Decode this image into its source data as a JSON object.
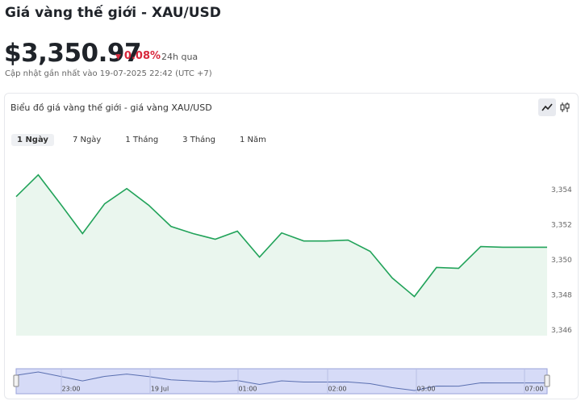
{
  "header": {
    "title": "Giá vàng thế giới - XAU/USD",
    "price": "$3,350.97",
    "change": "0.08%",
    "period": "24h qua",
    "updated": "Cập nhật gần nhất vào 19-07-2025 22:42 (UTC +7)"
  },
  "card": {
    "title": "Biểu đồ giá vàng thế giới - giá vàng XAU/USD",
    "tabs": [
      "1 Ngày",
      "7 Ngày",
      "1 Tháng",
      "3 Tháng",
      "1 Năm"
    ]
  },
  "chart_data": {
    "type": "line",
    "color": "#22a35a",
    "fill": "#eaf6ee",
    "values": [
      3353.63,
      3354.87,
      3353.22,
      3351.52,
      3353.22,
      3354.09,
      3353.13,
      3351.93,
      3351.52,
      3351.2,
      3351.66,
      3350.18,
      3351.56,
      3351.1,
      3351.1,
      3351.15,
      3350.51,
      3348.99,
      3347.93,
      3349.59,
      3349.54,
      3350.78,
      3350.74,
      3350.74,
      3350.74
    ],
    "ylim": [
      3345.7,
      3356.1
    ],
    "yticks": [
      {
        "value": 3346,
        "label": "3,346"
      },
      {
        "value": 3348,
        "label": "3,348"
      },
      {
        "value": 3350,
        "label": "3,350"
      },
      {
        "value": 3352,
        "label": "3,352"
      },
      {
        "value": 3354,
        "label": "3,354"
      }
    ],
    "grid": false,
    "navigator_labels": [
      "23:00",
      "19 Jul",
      "01:00",
      "02:00",
      "03:00",
      "07:00"
    ]
  }
}
